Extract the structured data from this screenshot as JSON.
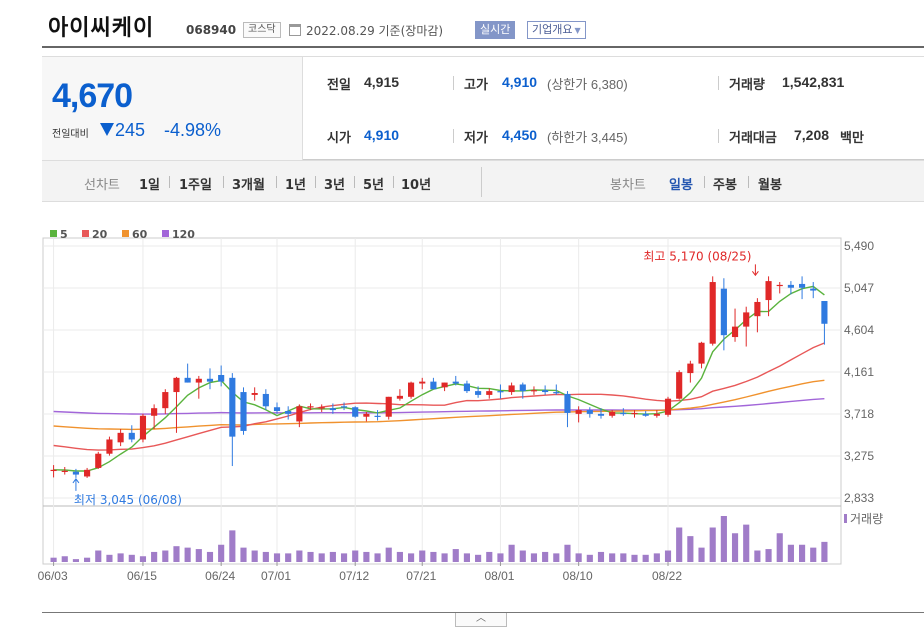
{
  "header": {
    "title": "아이씨케이",
    "code": "068940",
    "market": "코스닥",
    "date": "2022.08.29 기준(장마감)",
    "realtime_label": "실시간",
    "company_label": "기업개요"
  },
  "quote": {
    "price": "4,670",
    "change_label": "전일대비",
    "change": "245",
    "change_pct": "-4.98%",
    "prev_close_label": "전일",
    "prev_close": "4,915",
    "high_label": "고가",
    "high": "4,910",
    "upper_limit": "(상한가 6,380)",
    "volume_label": "거래량",
    "volume": "1,542,831",
    "open_label": "시가",
    "open": "4,910",
    "low_label": "저가",
    "low": "4,450",
    "lower_limit": "(하한가 3,445)",
    "amount_label": "거래대금",
    "amount": "7,208",
    "amount_unit": "백만"
  },
  "period_bar": {
    "line_chart_label": "선차트",
    "line_items": [
      "1일",
      "1주일",
      "3개월",
      "1년",
      "3년",
      "5년",
      "10년"
    ],
    "candle_label": "봉차트",
    "candle_items": [
      "일봉",
      "주봉",
      "월봉"
    ],
    "active_candle": "일봉"
  },
  "colors": {
    "up": "#e02828",
    "down": "#2f7ae0",
    "ma5": "#5ab33d",
    "ma20": "#e85858",
    "ma60": "#f0922e",
    "ma120": "#a266d9",
    "volume": "#a07cc8"
  },
  "chart_data": {
    "type": "candlestick",
    "legend": [
      {
        "name": "5",
        "color": "#5ab33d"
      },
      {
        "name": "20",
        "color": "#e85858"
      },
      {
        "name": "60",
        "color": "#f0922e"
      },
      {
        "name": "120",
        "color": "#a266d9"
      }
    ],
    "y_ticks": [
      "5,490",
      "5,047",
      "4,604",
      "4,161",
      "3,718",
      "3,275",
      "2,833"
    ],
    "ylim": [
      2833,
      5490
    ],
    "x_ticks": [
      "06/03",
      "06/15",
      "06/24",
      "07/01",
      "07/12",
      "07/21",
      "08/01",
      "08/10",
      "08/22"
    ],
    "x_tick_index": [
      0,
      8,
      15,
      20,
      27,
      33,
      40,
      47,
      55
    ],
    "volume_label": "거래량",
    "annotation_high": "최고 5,170 (08/25)",
    "annotation_low": "최저 3,045 (06/08)",
    "candles": [
      {
        "o": 3130,
        "h": 3180,
        "l": 3050,
        "c": 3130
      },
      {
        "o": 3120,
        "h": 3160,
        "l": 3080,
        "c": 3120
      },
      {
        "o": 3110,
        "h": 3140,
        "l": 3045,
        "c": 3080
      },
      {
        "o": 3060,
        "h": 3150,
        "l": 3045,
        "c": 3130
      },
      {
        "o": 3150,
        "h": 3320,
        "l": 3140,
        "c": 3300
      },
      {
        "o": 3300,
        "h": 3480,
        "l": 3280,
        "c": 3450
      },
      {
        "o": 3420,
        "h": 3560,
        "l": 3380,
        "c": 3520
      },
      {
        "o": 3520,
        "h": 3600,
        "l": 3420,
        "c": 3450
      },
      {
        "o": 3450,
        "h": 3720,
        "l": 3420,
        "c": 3700
      },
      {
        "o": 3700,
        "h": 3820,
        "l": 3560,
        "c": 3780
      },
      {
        "o": 3780,
        "h": 3980,
        "l": 3720,
        "c": 3950
      },
      {
        "o": 3950,
        "h": 4110,
        "l": 3520,
        "c": 4100
      },
      {
        "o": 4100,
        "h": 4250,
        "l": 4050,
        "c": 4050
      },
      {
        "o": 4050,
        "h": 4120,
        "l": 3880,
        "c": 4090
      },
      {
        "o": 4090,
        "h": 4200,
        "l": 3980,
        "c": 4060
      },
      {
        "o": 4130,
        "h": 4230,
        "l": 4010,
        "c": 4060
      },
      {
        "o": 4100,
        "h": 4150,
        "l": 3170,
        "c": 3480
      },
      {
        "o": 3950,
        "h": 4000,
        "l": 3500,
        "c": 3540
      },
      {
        "o": 3920,
        "h": 4000,
        "l": 3860,
        "c": 3940
      },
      {
        "o": 3930,
        "h": 3980,
        "l": 3760,
        "c": 3800
      },
      {
        "o": 3790,
        "h": 3840,
        "l": 3720,
        "c": 3750
      },
      {
        "o": 3750,
        "h": 3800,
        "l": 3660,
        "c": 3720
      },
      {
        "o": 3640,
        "h": 3820,
        "l": 3580,
        "c": 3800
      },
      {
        "o": 3800,
        "h": 3830,
        "l": 3760,
        "c": 3800
      },
      {
        "o": 3790,
        "h": 3820,
        "l": 3740,
        "c": 3790
      },
      {
        "o": 3780,
        "h": 3830,
        "l": 3720,
        "c": 3760
      },
      {
        "o": 3800,
        "h": 3840,
        "l": 3760,
        "c": 3790
      },
      {
        "o": 3790,
        "h": 3800,
        "l": 3680,
        "c": 3690
      },
      {
        "o": 3690,
        "h": 3740,
        "l": 3640,
        "c": 3720
      },
      {
        "o": 3700,
        "h": 3760,
        "l": 3650,
        "c": 3690
      },
      {
        "o": 3690,
        "h": 3900,
        "l": 3660,
        "c": 3900
      },
      {
        "o": 3880,
        "h": 3980,
        "l": 3860,
        "c": 3910
      },
      {
        "o": 3900,
        "h": 4060,
        "l": 3880,
        "c": 4050
      },
      {
        "o": 4040,
        "h": 4100,
        "l": 3980,
        "c": 4060
      },
      {
        "o": 4060,
        "h": 4100,
        "l": 3980,
        "c": 3980
      },
      {
        "o": 4000,
        "h": 4050,
        "l": 3960,
        "c": 4050
      },
      {
        "o": 4060,
        "h": 4120,
        "l": 4020,
        "c": 4040
      },
      {
        "o": 4040,
        "h": 4070,
        "l": 3940,
        "c": 3960
      },
      {
        "o": 3960,
        "h": 4010,
        "l": 3890,
        "c": 3920
      },
      {
        "o": 3920,
        "h": 3990,
        "l": 3880,
        "c": 3960
      },
      {
        "o": 3960,
        "h": 4030,
        "l": 3880,
        "c": 3950
      },
      {
        "o": 3950,
        "h": 4050,
        "l": 3920,
        "c": 4020
      },
      {
        "o": 4030,
        "h": 4050,
        "l": 3880,
        "c": 3960
      },
      {
        "o": 3960,
        "h": 4010,
        "l": 3920,
        "c": 3970
      },
      {
        "o": 3970,
        "h": 4020,
        "l": 3920,
        "c": 3950
      },
      {
        "o": 3950,
        "h": 4030,
        "l": 3920,
        "c": 3940
      },
      {
        "o": 3930,
        "h": 3960,
        "l": 3580,
        "c": 3730
      },
      {
        "o": 3720,
        "h": 3800,
        "l": 3630,
        "c": 3760
      },
      {
        "o": 3760,
        "h": 3790,
        "l": 3680,
        "c": 3720
      },
      {
        "o": 3720,
        "h": 3780,
        "l": 3670,
        "c": 3700
      },
      {
        "o": 3700,
        "h": 3760,
        "l": 3680,
        "c": 3740
      },
      {
        "o": 3730,
        "h": 3780,
        "l": 3700,
        "c": 3720
      },
      {
        "o": 3720,
        "h": 3760,
        "l": 3680,
        "c": 3730
      },
      {
        "o": 3720,
        "h": 3750,
        "l": 3690,
        "c": 3700
      },
      {
        "o": 3700,
        "h": 3760,
        "l": 3680,
        "c": 3720
      },
      {
        "o": 3710,
        "h": 3900,
        "l": 3690,
        "c": 3880
      },
      {
        "o": 3880,
        "h": 4180,
        "l": 3870,
        "c": 4160
      },
      {
        "o": 4150,
        "h": 4280,
        "l": 4050,
        "c": 4250
      },
      {
        "o": 4250,
        "h": 4480,
        "l": 4200,
        "c": 4470
      },
      {
        "o": 4460,
        "h": 5170,
        "l": 4440,
        "c": 5110
      },
      {
        "o": 5040,
        "h": 5150,
        "l": 4390,
        "c": 4550
      },
      {
        "o": 4530,
        "h": 4830,
        "l": 4480,
        "c": 4640
      },
      {
        "o": 4640,
        "h": 4850,
        "l": 4430,
        "c": 4790
      },
      {
        "o": 4750,
        "h": 4940,
        "l": 4580,
        "c": 4900
      },
      {
        "o": 4920,
        "h": 5170,
        "l": 4750,
        "c": 5120
      },
      {
        "o": 5070,
        "h": 5110,
        "l": 4990,
        "c": 5080
      },
      {
        "o": 5080,
        "h": 5120,
        "l": 4980,
        "c": 5050
      },
      {
        "o": 5090,
        "h": 5170,
        "l": 4930,
        "c": 5050
      },
      {
        "o": 5040,
        "h": 5110,
        "l": 4940,
        "c": 5020
      },
      {
        "o": 4910,
        "h": 4910,
        "l": 4450,
        "c": 4670
      }
    ],
    "volume": [
      3,
      4,
      2,
      3,
      8,
      5,
      6,
      5,
      4,
      7,
      8,
      11,
      10,
      9,
      7,
      12,
      22,
      10,
      8,
      7,
      6,
      6,
      8,
      7,
      6,
      7,
      6,
      8,
      7,
      6,
      10,
      7,
      6,
      8,
      7,
      6,
      9,
      6,
      5,
      7,
      6,
      12,
      8,
      6,
      7,
      6,
      12,
      6,
      5,
      7,
      6,
      6,
      5,
      5,
      6,
      8,
      24,
      18,
      10,
      24,
      32,
      20,
      26,
      8,
      9,
      20,
      12,
      12,
      10,
      14
    ]
  }
}
